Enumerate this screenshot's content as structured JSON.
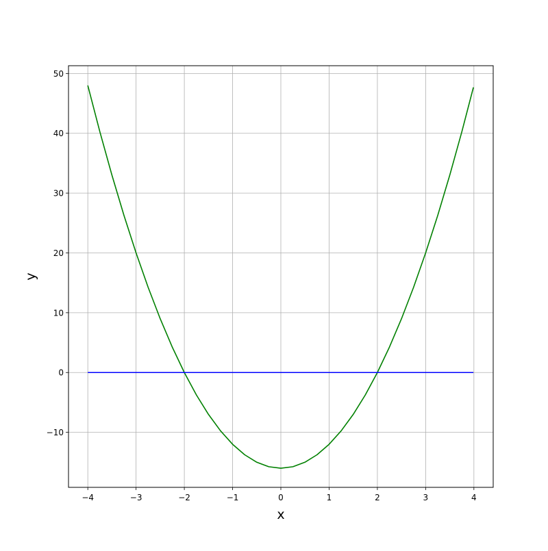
{
  "chart_data": {
    "type": "line",
    "title": "",
    "xlabel": "x",
    "ylabel": "y",
    "xlim": [
      -4.4,
      4.4
    ],
    "ylim": [
      -19.2,
      51.3
    ],
    "grid": true,
    "xticks": [
      -4,
      -3,
      -2,
      -1,
      0,
      1,
      2,
      3,
      4
    ],
    "xtick_labels": [
      "−4",
      "−3",
      "−2",
      "−1",
      "0",
      "1",
      "2",
      "3",
      "4"
    ],
    "yticks": [
      -10,
      0,
      10,
      20,
      30,
      40,
      50
    ],
    "ytick_labels": [
      "−10",
      "0",
      "10",
      "20",
      "30",
      "40",
      "50"
    ],
    "series": [
      {
        "color": "#008000",
        "x": [
          -4,
          -3.75,
          -3.5,
          -3.25,
          -3,
          -2.75,
          -2.5,
          -2.25,
          -2,
          -1.75,
          -1.5,
          -1.25,
          -1,
          -0.75,
          -0.5,
          -0.25,
          0,
          0.25,
          0.5,
          0.75,
          1,
          1.25,
          1.5,
          1.75,
          2,
          2.25,
          2.5,
          2.75,
          3,
          3.25,
          3.5,
          3.75,
          3.99
        ],
        "y": [
          48,
          40.25,
          33,
          26.25,
          20,
          14.25,
          9,
          4.25,
          0,
          -3.75,
          -7,
          -9.75,
          -12,
          -13.75,
          -15,
          -15.75,
          -16,
          -15.75,
          -15,
          -13.75,
          -12,
          -9.75,
          -7,
          -3.75,
          0,
          4.25,
          9,
          14.25,
          20,
          26.25,
          33,
          40.25,
          47.68
        ]
      },
      {
        "color": "#0000ff",
        "x": [
          -4,
          3.99
        ],
        "y": [
          0,
          0
        ]
      }
    ]
  }
}
